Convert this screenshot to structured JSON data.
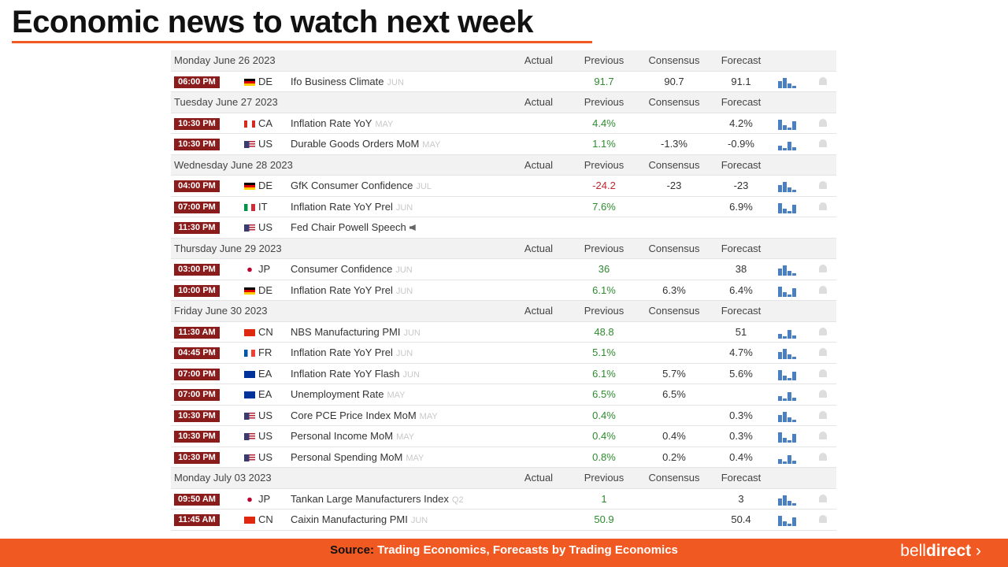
{
  "title": "Economic news to watch next week",
  "columns": {
    "actual": "Actual",
    "previous": "Previous",
    "consensus": "Consensus",
    "forecast": "Forecast"
  },
  "days": [
    {
      "date": "Monday June 26 2023",
      "events": [
        {
          "time": "06:00 PM",
          "country": "DE",
          "event": "Ifo Business Climate",
          "period": "JUN",
          "previous": "91.7",
          "previous_color": "#2e8b2e",
          "consensus": "90.7",
          "forecast": "91.1"
        }
      ]
    },
    {
      "date": "Tuesday June 27 2023",
      "events": [
        {
          "time": "10:30 PM",
          "country": "CA",
          "event": "Inflation Rate YoY",
          "period": "MAY",
          "previous": "4.4%",
          "previous_color": "#2e8b2e",
          "forecast": "4.2%"
        },
        {
          "time": "10:30 PM",
          "country": "US",
          "event": "Durable Goods Orders MoM",
          "period": "MAY",
          "previous": "1.1%",
          "previous_color": "#2e8b2e",
          "consensus": "-1.3%",
          "forecast": "-0.9%"
        }
      ]
    },
    {
      "date": "Wednesday June 28 2023",
      "events": [
        {
          "time": "04:00 PM",
          "country": "DE",
          "event": "GfK Consumer Confidence",
          "period": "JUL",
          "previous": "-24.2",
          "previous_color": "#c0262d",
          "consensus": "-23",
          "forecast": "-23"
        },
        {
          "time": "07:00 PM",
          "country": "IT",
          "event": "Inflation Rate YoY Prel",
          "period": "JUN",
          "previous": "7.6%",
          "previous_color": "#2e8b2e",
          "forecast": "6.9%"
        },
        {
          "time": "11:30 PM",
          "country": "US",
          "event": "Fed Chair Powell Speech"
        }
      ]
    },
    {
      "date": "Thursday June 29 2023",
      "events": [
        {
          "time": "03:00 PM",
          "country": "JP",
          "event": "Consumer Confidence",
          "period": "JUN",
          "previous": "36",
          "previous_color": "#2e8b2e",
          "forecast": "38"
        },
        {
          "time": "10:00 PM",
          "country": "DE",
          "event": "Inflation Rate YoY Prel",
          "period": "JUN",
          "previous": "6.1%",
          "previous_color": "#2e8b2e",
          "consensus": "6.3%",
          "forecast": "6.4%"
        }
      ]
    },
    {
      "date": "Friday June 30 2023",
      "events": [
        {
          "time": "11:30 AM",
          "country": "CN",
          "event": "NBS Manufacturing PMI",
          "period": "JUN",
          "previous": "48.8",
          "previous_color": "#2e8b2e",
          "forecast": "51"
        },
        {
          "time": "04:45 PM",
          "country": "FR",
          "event": "Inflation Rate YoY Prel",
          "period": "JUN",
          "previous": "5.1%",
          "previous_color": "#2e8b2e",
          "forecast": "4.7%"
        },
        {
          "time": "07:00 PM",
          "country": "EA",
          "event": "Inflation Rate YoY Flash",
          "period": "JUN",
          "previous": "6.1%",
          "previous_color": "#2e8b2e",
          "consensus": "5.7%",
          "forecast": "5.6%"
        },
        {
          "time": "07:00 PM",
          "country": "EA",
          "event": "Unemployment Rate",
          "period": "MAY",
          "previous": "6.5%",
          "previous_color": "#2e8b2e",
          "consensus": "6.5%"
        },
        {
          "time": "10:30 PM",
          "country": "US",
          "event": "Core PCE Price Index MoM",
          "period": "MAY",
          "previous": "0.4%",
          "previous_color": "#2e8b2e",
          "forecast": "0.3%"
        },
        {
          "time": "10:30 PM",
          "country": "US",
          "event": "Personal Income MoM",
          "period": "MAY",
          "previous": "0.4%",
          "previous_color": "#2e8b2e",
          "consensus": "0.4%",
          "forecast": "0.3%"
        },
        {
          "time": "10:30 PM",
          "country": "US",
          "event": "Personal Spending MoM",
          "period": "MAY",
          "previous": "0.8%",
          "previous_color": "#2e8b2e",
          "consensus": "0.2%",
          "forecast": "0.4%"
        }
      ]
    },
    {
      "date": "Monday July 03 2023",
      "events": [
        {
          "time": "09:50 AM",
          "country": "JP",
          "event": "Tankan Large Manufacturers Index",
          "period": "Q2",
          "previous": "1",
          "previous_color": "#2e8b2e",
          "forecast": "3"
        },
        {
          "time": "11:45 AM",
          "country": "CN",
          "event": "Caixin Manufacturing PMI",
          "period": "JUN",
          "previous": "50.9",
          "previous_color": "#2e8b2e",
          "forecast": "50.4"
        }
      ]
    }
  ],
  "footer": {
    "source_label": "Source:",
    "source": "Trading Economics, Forecasts by Trading Economics",
    "logo_a": "bell",
    "logo_b": "direct"
  }
}
